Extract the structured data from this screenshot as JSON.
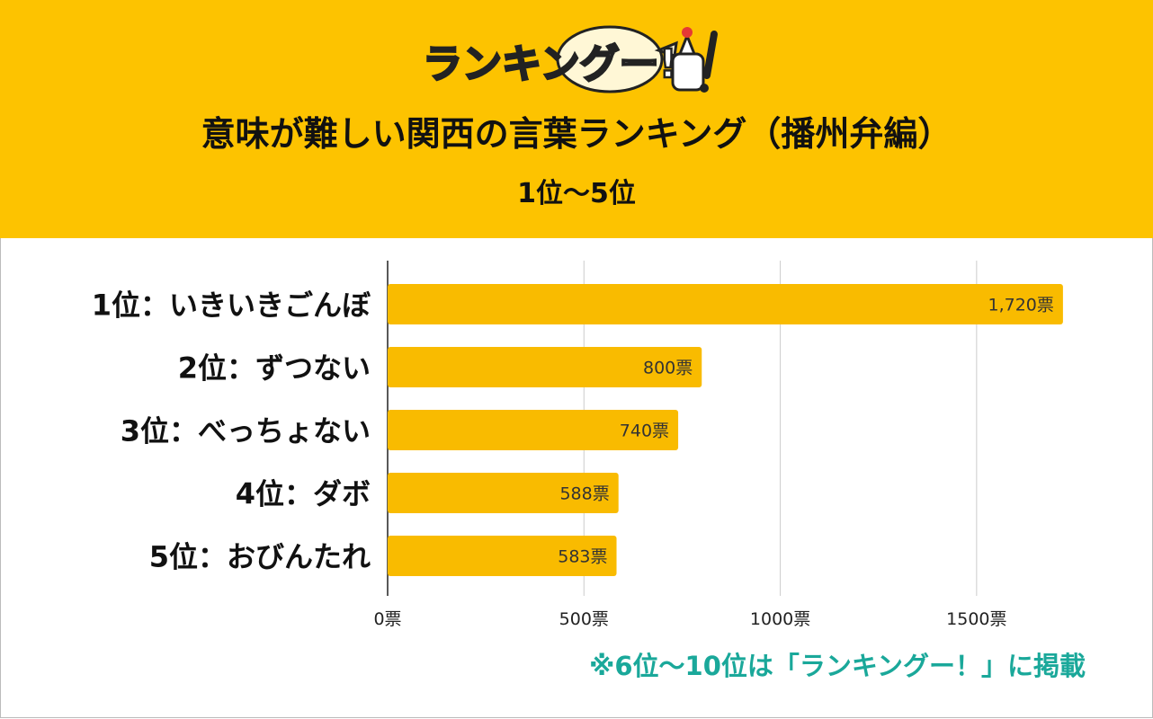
{
  "header": {
    "logo_text": "ランキングー!",
    "title": "意味が難しい関西の言葉ランキング（播州弁編）",
    "subtitle": "1位～5位",
    "bg_color": "#fdc300"
  },
  "footer": {
    "note": "※6位～10位は「ランキングー！」に掲載",
    "note_color": "#1aa89a"
  },
  "chart_data": {
    "type": "bar",
    "orientation": "horizontal",
    "categories": [
      "1位：いきいきごんぼ",
      "2位：ずつない",
      "3位：べっちょない",
      "4位：ダボ",
      "5位：おびんたれ"
    ],
    "values": [
      1720,
      800,
      740,
      588,
      583
    ],
    "value_labels": [
      "1,720票",
      "800票",
      "740票",
      "588票",
      "583票"
    ],
    "xlim": [
      0,
      1750
    ],
    "xticks": [
      0,
      500,
      1000,
      1500
    ],
    "xtick_labels": [
      "0票",
      "500票",
      "1000票",
      "1500票"
    ],
    "grid": true,
    "bar_color": "#f9bb00",
    "title": "",
    "xlabel": "",
    "ylabel": ""
  }
}
